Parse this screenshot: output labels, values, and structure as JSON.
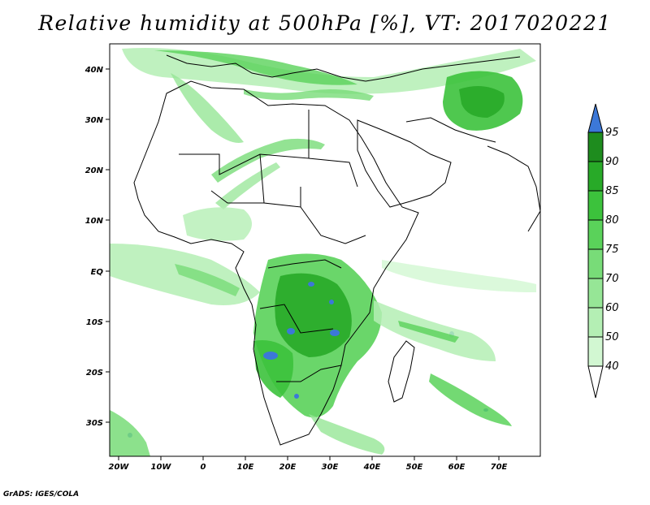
{
  "title": "Relative humidity at 500hPa [%], VT: 2017020221",
  "footer": "GrADS: IGES/COLA",
  "map": {
    "lon_labels": [
      "20W",
      "10W",
      "0",
      "10E",
      "20E",
      "30E",
      "40E",
      "50E",
      "60E",
      "70E"
    ],
    "lat_labels": [
      "40N",
      "30N",
      "20N",
      "10N",
      "EQ",
      "10S",
      "20S",
      "30S"
    ]
  },
  "colorbar": {
    "levels": [
      "40",
      "50",
      "60",
      "70",
      "75",
      "80",
      "85",
      "90",
      "95"
    ],
    "colors": {
      "c40": "#f0fff0",
      "c50": "#d2f7d2",
      "c60": "#b4efb4",
      "c70": "#96e696",
      "c75": "#78dc78",
      "c80": "#5ad25a",
      "c85": "#3cc23c",
      "c90": "#28aa28",
      "c95": "#1e8c1e",
      "over": "#3c78d8"
    }
  }
}
